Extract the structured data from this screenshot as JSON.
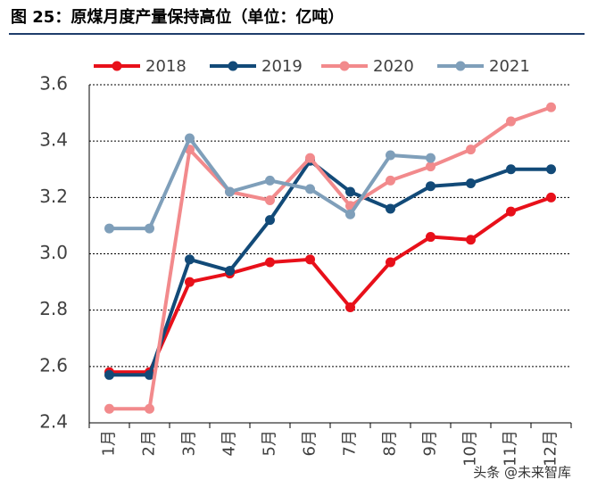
{
  "chart_data": {
    "type": "line",
    "title": "图 25：原煤月度产量保持高位（单位：亿吨）",
    "watermark": "头条 @未来智库",
    "categories": [
      "1月",
      "2月",
      "3月",
      "4月",
      "5月",
      "6月",
      "7月",
      "8月",
      "9月",
      "10月",
      "11月",
      "12月"
    ],
    "series": [
      {
        "name": "2018",
        "color": "#e8101a",
        "values": [
          2.58,
          2.58,
          2.9,
          2.93,
          2.97,
          2.98,
          2.81,
          2.97,
          3.06,
          3.05,
          3.15,
          3.2
        ]
      },
      {
        "name": "2019",
        "color": "#124a78",
        "values": [
          2.57,
          2.57,
          2.98,
          2.94,
          3.12,
          3.33,
          3.22,
          3.16,
          3.24,
          3.25,
          3.3,
          3.3
        ]
      },
      {
        "name": "2020",
        "color": "#f28a8c",
        "values": [
          2.45,
          2.45,
          3.37,
          3.22,
          3.19,
          3.34,
          3.17,
          3.26,
          3.31,
          3.37,
          3.47,
          3.52
        ]
      },
      {
        "name": "2021",
        "color": "#7f9fba",
        "values": [
          3.09,
          3.09,
          3.41,
          3.22,
          3.26,
          3.23,
          3.14,
          3.35,
          3.34,
          null,
          null,
          null
        ]
      }
    ],
    "ylim": [
      2.4,
      3.6
    ],
    "yticks": [
      2.4,
      2.6,
      2.8,
      {
        "value": 3,
        "label": "3.0"
      },
      3.2,
      3.4,
      3.6
    ],
    "grid": true
  }
}
